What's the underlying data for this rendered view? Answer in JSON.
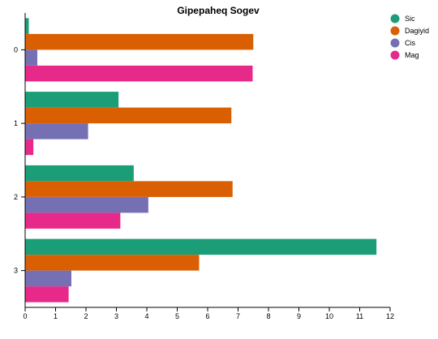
{
  "chart_data": {
    "type": "bar",
    "orientation": "horizontal",
    "title": "Gipepaheq Sogev",
    "xlabel": "",
    "ylabel": "",
    "categories": [
      "0",
      "1",
      "2",
      "3"
    ],
    "xlim": [
      0,
      12
    ],
    "x_ticks": [
      "0",
      "1",
      "2",
      "3",
      "4",
      "5",
      "6",
      "7",
      "8",
      "9",
      "10",
      "11",
      "12"
    ],
    "grid": false,
    "legend_position": "top-right",
    "series": [
      {
        "name": "Sic",
        "color": "#1b9e77",
        "values": [
          0.12,
          3.07,
          3.57,
          11.55
        ]
      },
      {
        "name": "Dagiyid",
        "color": "#d95f02",
        "values": [
          7.5,
          6.78,
          6.82,
          5.72
        ]
      },
      {
        "name": "Cis",
        "color": "#7570b3",
        "values": [
          0.4,
          2.07,
          4.05,
          1.52
        ]
      },
      {
        "name": "Mag",
        "color": "#e7298a",
        "values": [
          7.48,
          0.27,
          3.13,
          1.43
        ]
      }
    ]
  }
}
